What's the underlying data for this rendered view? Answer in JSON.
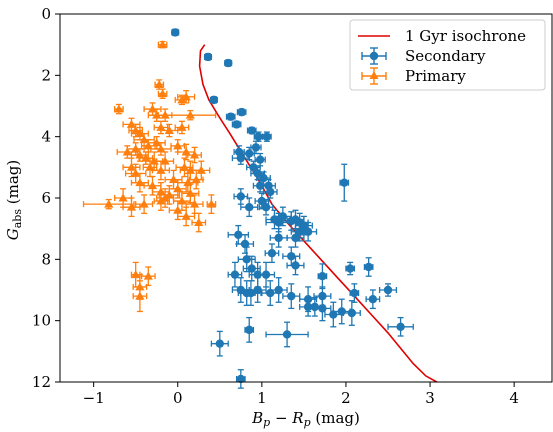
{
  "chart_data": {
    "type": "scatter",
    "title": "",
    "xlabel": "B_p − R_p (mag)",
    "ylabel": "G_abs (mag)",
    "xlim": [
      -1.4,
      4.45
    ],
    "ylim": [
      12,
      0
    ],
    "y_inverted": true,
    "x_ticks": [
      -1,
      0,
      1,
      2,
      3,
      4
    ],
    "y_ticks": [
      0,
      2,
      4,
      6,
      8,
      10,
      12
    ],
    "grid": false,
    "legend_position": "top-right",
    "legend": [
      {
        "label": "1 Gyr isochrone",
        "kind": "line",
        "color": "#e00000"
      },
      {
        "label": "Secondary",
        "kind": "errorbar-circle",
        "color": "#1f77b4"
      },
      {
        "label": "Primary",
        "kind": "errorbar-triangle",
        "color": "#ff7f0e"
      }
    ],
    "series": [
      {
        "name": "1 Gyr isochrone",
        "kind": "line",
        "color": "#e00000",
        "points": [
          [
            0.32,
            1.0
          ],
          [
            0.27,
            1.2
          ],
          [
            0.26,
            1.7
          ],
          [
            0.3,
            2.3
          ],
          [
            0.37,
            2.8
          ],
          [
            0.48,
            3.3
          ],
          [
            0.62,
            3.9
          ],
          [
            0.8,
            4.7
          ],
          [
            0.98,
            5.5
          ],
          [
            1.12,
            6.2
          ],
          [
            1.3,
            6.8
          ],
          [
            1.5,
            7.4
          ],
          [
            1.7,
            8.0
          ],
          [
            1.9,
            8.6
          ],
          [
            2.1,
            9.2
          ],
          [
            2.3,
            9.8
          ],
          [
            2.5,
            10.4
          ],
          [
            2.65,
            10.9
          ],
          [
            2.8,
            11.4
          ],
          [
            2.95,
            11.8
          ],
          [
            3.08,
            12.0
          ]
        ]
      },
      {
        "name": "Secondary",
        "kind": "errorbar",
        "marker": "circle",
        "color": "#1f77b4",
        "points": [
          [
            -0.03,
            0.6,
            0.04,
            0.1
          ],
          [
            0.36,
            1.4,
            0.04,
            0.1
          ],
          [
            0.6,
            1.6,
            0.04,
            0.1
          ],
          [
            0.43,
            2.8,
            0.04,
            0.1
          ],
          [
            0.63,
            3.35,
            0.05,
            0.1
          ],
          [
            0.76,
            3.2,
            0.05,
            0.1
          ],
          [
            0.7,
            3.6,
            0.05,
            0.1
          ],
          [
            0.88,
            3.8,
            0.05,
            0.1
          ],
          [
            0.96,
            4.0,
            0.05,
            0.15
          ],
          [
            1.06,
            4.0,
            0.05,
            0.15
          ],
          [
            0.73,
            4.5,
            0.06,
            0.2
          ],
          [
            0.85,
            4.55,
            0.06,
            0.2
          ],
          [
            0.93,
            4.35,
            0.06,
            0.2
          ],
          [
            0.75,
            4.7,
            0.1,
            0.2
          ],
          [
            0.98,
            4.75,
            0.06,
            0.2
          ],
          [
            0.9,
            5.0,
            0.08,
            0.2
          ],
          [
            0.95,
            5.2,
            0.08,
            0.2
          ],
          [
            1.02,
            5.35,
            0.08,
            0.2
          ],
          [
            1.08,
            5.6,
            0.08,
            0.2
          ],
          [
            0.98,
            5.6,
            0.08,
            0.2
          ],
          [
            1.1,
            5.8,
            0.08,
            0.2
          ],
          [
            0.75,
            5.95,
            0.08,
            0.25
          ],
          [
            1.0,
            6.1,
            0.08,
            0.25
          ],
          [
            1.05,
            6.3,
            0.08,
            0.25
          ],
          [
            0.85,
            6.3,
            0.1,
            0.3
          ],
          [
            1.15,
            6.7,
            0.1,
            0.3
          ],
          [
            1.2,
            6.8,
            0.15,
            0.3
          ],
          [
            1.25,
            6.6,
            0.1,
            0.3
          ],
          [
            1.35,
            6.75,
            0.1,
            0.3
          ],
          [
            1.4,
            6.7,
            0.1,
            0.3
          ],
          [
            1.45,
            6.8,
            0.1,
            0.3
          ],
          [
            1.5,
            6.9,
            0.1,
            0.3
          ],
          [
            1.45,
            7.1,
            0.1,
            0.3
          ],
          [
            1.55,
            7.1,
            0.1,
            0.3
          ],
          [
            0.72,
            7.2,
            0.12,
            0.3
          ],
          [
            0.8,
            7.5,
            0.1,
            0.3
          ],
          [
            1.2,
            7.3,
            0.1,
            0.3
          ],
          [
            1.4,
            7.3,
            0.1,
            0.3
          ],
          [
            1.12,
            7.8,
            0.08,
            0.3
          ],
          [
            1.35,
            7.9,
            0.1,
            0.3
          ],
          [
            1.4,
            8.2,
            0.1,
            0.3
          ],
          [
            0.82,
            8.0,
            0.1,
            0.4
          ],
          [
            0.88,
            8.3,
            0.1,
            0.4
          ],
          [
            0.68,
            8.5,
            0.08,
            0.4
          ],
          [
            0.95,
            8.5,
            0.1,
            0.4
          ],
          [
            1.05,
            8.5,
            0.1,
            0.4
          ],
          [
            0.75,
            9.0,
            0.1,
            0.4
          ],
          [
            0.82,
            9.1,
            0.1,
            0.4
          ],
          [
            0.87,
            9.1,
            0.12,
            0.4
          ],
          [
            0.95,
            9.0,
            0.1,
            0.4
          ],
          [
            1.1,
            9.1,
            0.1,
            0.4
          ],
          [
            1.2,
            9.0,
            0.1,
            0.4
          ],
          [
            1.35,
            9.2,
            0.1,
            0.4
          ],
          [
            1.55,
            9.3,
            0.1,
            0.4
          ],
          [
            1.55,
            9.55,
            0.1,
            0.3
          ],
          [
            1.63,
            9.55,
            0.1,
            0.3
          ],
          [
            1.72,
            9.2,
            0.1,
            0.3
          ],
          [
            1.72,
            8.55,
            0.05,
            0.4
          ],
          [
            1.72,
            9.6,
            0.1,
            0.4
          ],
          [
            1.85,
            9.8,
            0.1,
            0.4
          ],
          [
            1.95,
            9.7,
            0.1,
            0.4
          ],
          [
            2.07,
            9.75,
            0.1,
            0.4
          ],
          [
            2.1,
            9.1,
            0.05,
            0.3
          ],
          [
            2.05,
            8.3,
            0.05,
            0.2
          ],
          [
            2.27,
            8.25,
            0.05,
            0.3
          ],
          [
            2.32,
            9.3,
            0.08,
            0.3
          ],
          [
            2.5,
            9.0,
            0.1,
            0.2
          ],
          [
            1.98,
            5.5,
            0.05,
            0.6
          ],
          [
            2.65,
            10.2,
            0.15,
            0.3
          ],
          [
            1.3,
            10.45,
            0.25,
            0.4
          ],
          [
            0.85,
            10.3,
            0.05,
            0.4
          ],
          [
            0.5,
            10.75,
            0.1,
            0.4
          ],
          [
            0.75,
            11.9,
            0.05,
            0.3
          ]
        ]
      },
      {
        "name": "Primary",
        "kind": "errorbar",
        "marker": "triangle",
        "color": "#ff7f0e",
        "points": [
          [
            -0.18,
            1.0,
            0.05,
            0.1
          ],
          [
            -0.22,
            2.3,
            0.05,
            0.15
          ],
          [
            -0.18,
            2.6,
            0.05,
            0.15
          ],
          [
            0.1,
            2.7,
            0.1,
            0.2
          ],
          [
            0.05,
            2.8,
            0.08,
            0.15
          ],
          [
            -0.7,
            3.1,
            0.05,
            0.15
          ],
          [
            -0.3,
            3.1,
            0.1,
            0.2
          ],
          [
            -0.25,
            3.3,
            0.1,
            0.2
          ],
          [
            -0.15,
            3.3,
            0.08,
            0.2
          ],
          [
            0.15,
            3.3,
            0.3,
            0.15
          ],
          [
            -0.55,
            3.6,
            0.1,
            0.2
          ],
          [
            -0.5,
            3.8,
            0.08,
            0.2
          ],
          [
            -0.45,
            3.9,
            0.1,
            0.2
          ],
          [
            -0.2,
            3.7,
            0.08,
            0.2
          ],
          [
            -0.1,
            3.8,
            0.1,
            0.2
          ],
          [
            0.05,
            3.7,
            0.08,
            0.2
          ],
          [
            -0.4,
            4.1,
            0.12,
            0.2
          ],
          [
            -0.35,
            4.3,
            0.08,
            0.2
          ],
          [
            -0.25,
            4.2,
            0.1,
            0.2
          ],
          [
            -0.2,
            4.4,
            0.12,
            0.2
          ],
          [
            -0.6,
            4.5,
            0.12,
            0.2
          ],
          [
            -0.5,
            4.4,
            0.1,
            0.2
          ],
          [
            -0.45,
            4.6,
            0.1,
            0.2
          ],
          [
            -0.38,
            4.7,
            0.08,
            0.2
          ],
          [
            0.0,
            4.3,
            0.08,
            0.2
          ],
          [
            0.1,
            4.5,
            0.1,
            0.25
          ],
          [
            0.2,
            4.6,
            0.08,
            0.25
          ],
          [
            -0.28,
            4.8,
            0.1,
            0.3
          ],
          [
            -0.15,
            4.8,
            0.1,
            0.3
          ],
          [
            -0.55,
            5.0,
            0.1,
            0.3
          ],
          [
            -0.5,
            5.2,
            0.12,
            0.3
          ],
          [
            -0.33,
            5.0,
            0.08,
            0.3
          ],
          [
            -0.2,
            5.1,
            0.1,
            0.3
          ],
          [
            0.08,
            5.0,
            0.1,
            0.3
          ],
          [
            0.15,
            5.1,
            0.12,
            0.3
          ],
          [
            0.28,
            5.1,
            0.1,
            0.3
          ],
          [
            0.22,
            5.4,
            0.08,
            0.3
          ],
          [
            -0.05,
            5.4,
            0.1,
            0.3
          ],
          [
            -0.45,
            5.5,
            0.1,
            0.3
          ],
          [
            -0.3,
            5.6,
            0.1,
            0.3
          ],
          [
            0.12,
            5.5,
            0.12,
            0.3
          ],
          [
            -0.2,
            5.8,
            0.1,
            0.3
          ],
          [
            -0.1,
            5.9,
            0.12,
            0.3
          ],
          [
            0.0,
            5.7,
            0.1,
            0.3
          ],
          [
            0.15,
            5.85,
            0.1,
            0.3
          ],
          [
            -0.15,
            6.0,
            0.1,
            0.3
          ],
          [
            -0.2,
            6.1,
            0.08,
            0.3
          ],
          [
            0.05,
            6.1,
            0.1,
            0.3
          ],
          [
            0.2,
            6.2,
            0.1,
            0.3
          ],
          [
            -0.65,
            6.0,
            0.1,
            0.3
          ],
          [
            -0.55,
            6.3,
            0.1,
            0.3
          ],
          [
            -0.82,
            6.2,
            0.3,
            0.15
          ],
          [
            -0.4,
            6.2,
            0.1,
            0.3
          ],
          [
            0.4,
            6.2,
            0.05,
            0.3
          ],
          [
            0.0,
            6.4,
            0.1,
            0.3
          ],
          [
            0.1,
            6.6,
            0.1,
            0.3
          ],
          [
            0.25,
            6.8,
            0.08,
            0.3
          ],
          [
            -0.35,
            8.55,
            0.08,
            0.3
          ],
          [
            -0.5,
            8.5,
            0.05,
            0.4
          ],
          [
            -0.45,
            8.9,
            0.08,
            0.4
          ],
          [
            -0.45,
            9.2,
            0.08,
            0.5
          ]
        ]
      }
    ]
  }
}
